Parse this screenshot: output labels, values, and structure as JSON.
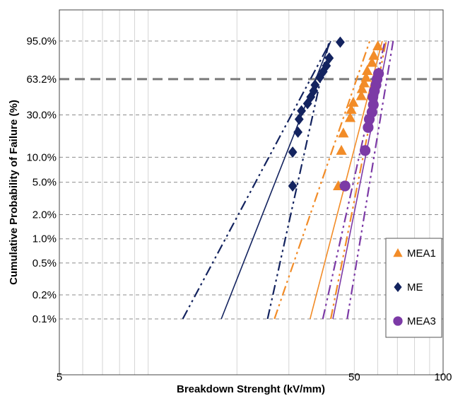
{
  "chart_data": {
    "type": "scatter",
    "xlabel": "Breakdown  Strenght (kV/mm)",
    "ylabel": "Cumulative Probability of Failure (%)",
    "x_scale": "log",
    "y_scale": "weibull",
    "xlim": [
      5,
      100
    ],
    "x_tick_labels": [
      {
        "value": 5,
        "label": "5"
      },
      {
        "value": 50,
        "label": "50"
      },
      {
        "value": 100,
        "label": "100"
      }
    ],
    "y_tick_labels": [
      {
        "value": 95.0,
        "label": "95.0%"
      },
      {
        "value": 63.2,
        "label": "63.2%"
      },
      {
        "value": 30.0,
        "label": "30.0%"
      },
      {
        "value": 10.0,
        "label": "10.0%"
      },
      {
        "value": 5.0,
        "label": "5.0%"
      },
      {
        "value": 2.0,
        "label": "2.0%"
      },
      {
        "value": 1.0,
        "label": "1.0%"
      },
      {
        "value": 0.5,
        "label": "0.5%"
      },
      {
        "value": 0.2,
        "label": "0.2%"
      },
      {
        "value": 0.1,
        "label": "0.1%"
      }
    ],
    "grid": true,
    "legend_position": "bottom-right",
    "series": [
      {
        "name": "MEA1",
        "color": "#f28c28",
        "marker": "triangle",
        "points": [
          {
            "x": 44.1,
            "y": 4.5
          },
          {
            "x": 45.2,
            "y": 12.0
          },
          {
            "x": 45.9,
            "y": 19.0
          },
          {
            "x": 48.4,
            "y": 28.0
          },
          {
            "x": 48.8,
            "y": 34.0
          },
          {
            "x": 49.6,
            "y": 40.0
          },
          {
            "x": 52.8,
            "y": 46.0
          },
          {
            "x": 53.1,
            "y": 53.0
          },
          {
            "x": 54.0,
            "y": 59.0
          },
          {
            "x": 54.8,
            "y": 65.0
          },
          {
            "x": 55.3,
            "y": 72.0
          },
          {
            "x": 57.4,
            "y": 80.0
          },
          {
            "x": 58.2,
            "y": 86.0
          },
          {
            "x": 60.1,
            "y": 92.5
          }
        ],
        "fit": {
          "x_at_0_1": 35.4,
          "x_at_95": 62.2
        },
        "ci_lower": {
          "x_at_0_1": 26.8,
          "x_at_95": 56.4
        },
        "ci_upper": {
          "x_at_0_1": 41.6,
          "x_at_95": 64.1
        }
      },
      {
        "name": "ME",
        "color": "#13235f",
        "marker": "diamond",
        "points": [
          {
            "x": 30.9,
            "y": 4.5
          },
          {
            "x": 30.9,
            "y": 11.5
          },
          {
            "x": 32.2,
            "y": 19.5
          },
          {
            "x": 32.5,
            "y": 27.0
          },
          {
            "x": 33.1,
            "y": 33.0
          },
          {
            "x": 34.7,
            "y": 39.0
          },
          {
            "x": 35.6,
            "y": 45.0
          },
          {
            "x": 36.4,
            "y": 51.0
          },
          {
            "x": 36.8,
            "y": 57.0
          },
          {
            "x": 38.2,
            "y": 65.0
          },
          {
            "x": 39.2,
            "y": 71.0
          },
          {
            "x": 40.2,
            "y": 77.0
          },
          {
            "x": 41.1,
            "y": 84.0
          },
          {
            "x": 44.8,
            "y": 94.5
          }
        ],
        "fit": {
          "x_at_0_1": 17.7,
          "x_at_95": 41.6
        },
        "ci_lower": {
          "x_at_0_1": 13.1,
          "x_at_95": 41.6
        },
        "ci_upper": {
          "x_at_0_1": 25.4,
          "x_at_95": 41.1
        }
      },
      {
        "name": "MEA3",
        "color": "#7c3aa6",
        "marker": "circle",
        "points": [
          {
            "x": 46.5,
            "y": 4.5
          },
          {
            "x": 54.4,
            "y": 12.0
          },
          {
            "x": 55.7,
            "y": 22.0
          },
          {
            "x": 56.2,
            "y": 27.0
          },
          {
            "x": 57.4,
            "y": 32.0
          },
          {
            "x": 58.0,
            "y": 38.0
          },
          {
            "x": 57.8,
            "y": 45.0
          },
          {
            "x": 58.5,
            "y": 51.0
          },
          {
            "x": 59.2,
            "y": 57.0
          },
          {
            "x": 59.7,
            "y": 63.0
          },
          {
            "x": 60.4,
            "y": 69.0
          }
        ],
        "fit": {
          "x_at_0_1": 42.3,
          "x_at_95": 65.4
        },
        "ci_lower": {
          "x_at_0_1": 39.1,
          "x_at_95": 63.5
        },
        "ci_upper": {
          "x_at_0_1": 47.3,
          "x_at_95": 67.7
        }
      }
    ]
  }
}
